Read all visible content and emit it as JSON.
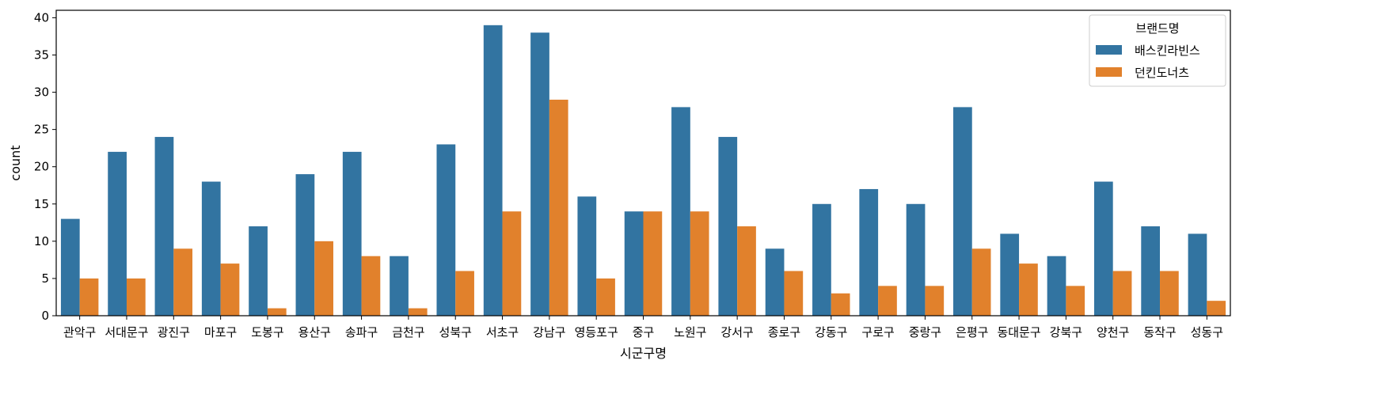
{
  "chart_data": {
    "type": "bar",
    "title": "",
    "xlabel": "시군구명",
    "ylabel": "count",
    "ylim": [
      0,
      41
    ],
    "yticks": [
      0,
      5,
      10,
      15,
      20,
      25,
      30,
      35,
      40
    ],
    "grid": false,
    "categories": [
      "관악구",
      "서대문구",
      "광진구",
      "마포구",
      "도봉구",
      "용산구",
      "송파구",
      "금천구",
      "성북구",
      "서초구",
      "강남구",
      "영등포구",
      "중구",
      "노원구",
      "강서구",
      "종로구",
      "강동구",
      "구로구",
      "중랑구",
      "은평구",
      "동대문구",
      "강북구",
      "양천구",
      "동작구",
      "성동구"
    ],
    "series": [
      {
        "name": "배스킨라빈스",
        "color": "#3274a1",
        "values": [
          13,
          22,
          24,
          18,
          12,
          19,
          22,
          8,
          23,
          39,
          38,
          16,
          14,
          28,
          24,
          9,
          15,
          17,
          15,
          28,
          11,
          8,
          18,
          12,
          11
        ]
      },
      {
        "name": "던킨도너츠",
        "color": "#e1812c",
        "values": [
          5,
          5,
          9,
          7,
          1,
          10,
          8,
          1,
          6,
          14,
          29,
          5,
          14,
          14,
          12,
          6,
          3,
          4,
          4,
          9,
          7,
          4,
          6,
          6,
          2
        ]
      }
    ],
    "legend": {
      "title": "브랜드명",
      "position": "top-right"
    }
  }
}
